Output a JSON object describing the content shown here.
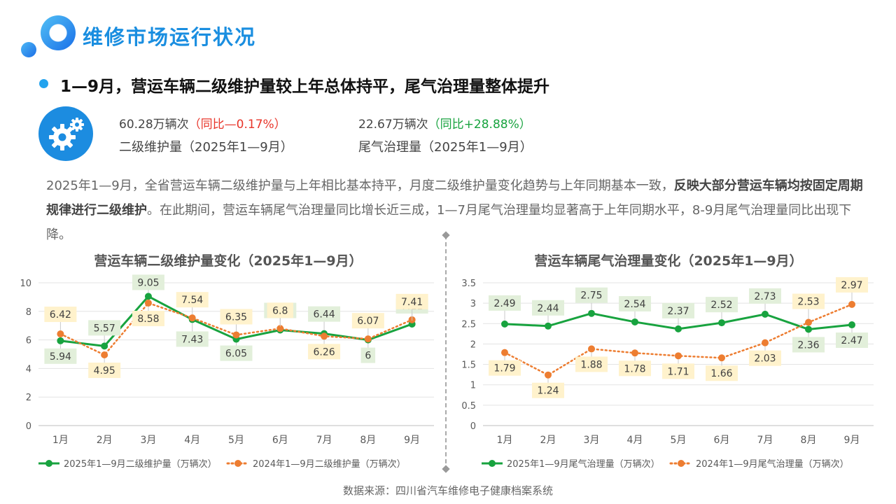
{
  "header": {
    "title": "维修市场运行状况",
    "subtitle": "1—9月，营运车辆二级维护量较上年总体持平，尾气治理量整体提升"
  },
  "stats": {
    "stat1_value": "60.28万辆次",
    "stat1_change": "（同比—0.17%）",
    "stat1_label": "二级维护量（2025年1—9月）",
    "stat2_value": "22.67万辆次",
    "stat2_change": "（同比+28.88%）",
    "stat2_label": "尾气治理量（2025年1—9月）"
  },
  "paragraph": {
    "part1": "2025年1—9月，全省营运车辆二级维护量与上年相比基本持平，月度二级维护量变化趋势与上年同期基本一致，",
    "bold": "反映大部分营运车辆均按固定周期规律进行二级维护",
    "part2": "。在此期间，营运车辆尾气治理量同比增长近三成，1—7月尾气治理量均显著高于上年同期水平，8-9月尾气治理量同比出现下降。"
  },
  "source": "数据来源：四川省汽车维修电子健康档案系统",
  "colors": {
    "green": "#18a33f",
    "orange": "#ed7d31",
    "green_label_bg": "#e2efda",
    "orange_label_bg": "#fff2cc",
    "accent": "#1a8ee0"
  },
  "chart_data": [
    {
      "type": "line",
      "title": "营运车辆二级维护量变化（2025年1—9月）",
      "categories": [
        "1月",
        "2月",
        "3月",
        "4月",
        "5月",
        "6月",
        "7月",
        "8月",
        "9月"
      ],
      "ylim": [
        0,
        10
      ],
      "yticks": [
        "0",
        "2",
        "4",
        "6",
        "8",
        "10"
      ],
      "grid": true,
      "legend": "bottom",
      "series": [
        {
          "name": "2025年1—9月二级维护量（万辆次）",
          "values": [
            5.94,
            5.57,
            9.05,
            7.43,
            6.05,
            6.69,
            6.44,
            6,
            7.11
          ],
          "labels": [
            "5.94",
            "5.57",
            "9.05",
            "7.43",
            "6.05",
            "6.69",
            "6.44",
            "6",
            "7.11"
          ],
          "style": "solid"
        },
        {
          "name": "2024年1—9月二级维护量（万辆次）",
          "values": [
            6.42,
            4.95,
            8.58,
            7.54,
            6.35,
            6.8,
            6.26,
            6.07,
            7.41
          ],
          "labels": [
            "6.42",
            "4.95",
            "8.58",
            "7.54",
            "6.35",
            "6.8",
            "6.26",
            "6.07",
            "7.41"
          ],
          "style": "dotted"
        }
      ]
    },
    {
      "type": "line",
      "title": "营运车辆尾气治理量变化（2025年1—9月）",
      "categories": [
        "1月",
        "2月",
        "3月",
        "4月",
        "5月",
        "6月",
        "7月",
        "8月",
        "9月"
      ],
      "ylim": [
        0,
        3.5
      ],
      "yticks": [
        "0",
        "0.5",
        "1",
        "1.5",
        "2",
        "2.5",
        "3",
        "3.5"
      ],
      "grid": true,
      "legend": "bottom",
      "series": [
        {
          "name": "2025年1—9月尾气治理量（万辆次）",
          "values": [
            2.49,
            2.44,
            2.75,
            2.54,
            2.37,
            2.52,
            2.73,
            2.36,
            2.47
          ],
          "labels": [
            "2.49",
            "2.44",
            "2.75",
            "2.54",
            "2.37",
            "2.52",
            "2.73",
            "2.36",
            "2.47"
          ],
          "style": "solid"
        },
        {
          "name": "2024年1—9月尾气治理量（万辆次）",
          "values": [
            1.79,
            1.24,
            1.88,
            1.78,
            1.71,
            1.66,
            2.03,
            2.53,
            2.97
          ],
          "labels": [
            "1.79",
            "1.24",
            "1.88",
            "1.78",
            "1.71",
            "1.66",
            "2.03",
            "2.53",
            "2.97"
          ],
          "style": "dotted"
        }
      ]
    }
  ]
}
